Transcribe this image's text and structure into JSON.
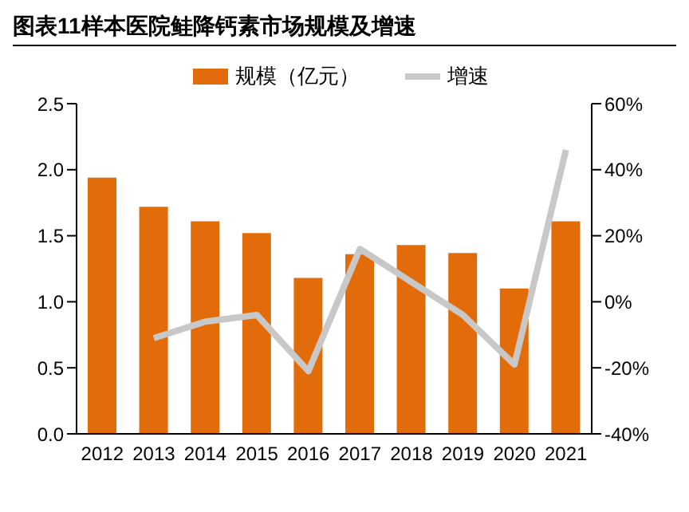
{
  "chart_data": {
    "type": "bar",
    "title": "图表11样本医院鲑降钙素市场规模及增速",
    "categories": [
      "2012",
      "2013",
      "2014",
      "2015",
      "2016",
      "2017",
      "2018",
      "2019",
      "2020",
      "2021"
    ],
    "series": [
      {
        "name": "规模（亿元）",
        "color": "#e36c0a",
        "values": [
          1.94,
          1.72,
          1.61,
          1.52,
          1.18,
          1.36,
          1.43,
          1.37,
          1.1,
          1.61
        ]
      },
      {
        "name": "增速",
        "type": "line",
        "axis": "y2",
        "color": "#c8c8c8",
        "values": [
          null,
          -11,
          -6,
          -4,
          -21,
          16,
          6,
          -4,
          -19,
          46
        ]
      }
    ],
    "ylim": [
      0,
      2.5
    ],
    "yticks": [
      {
        "value": 0,
        "label": "0.0"
      },
      {
        "value": 0.5,
        "label": "0.5"
      },
      {
        "value": 1,
        "label": "1.0"
      },
      {
        "value": 1.5,
        "label": "1.5"
      },
      {
        "value": 2,
        "label": "2.0"
      },
      {
        "value": 2.5,
        "label": "2.5"
      }
    ],
    "y2lim": [
      -40,
      60
    ],
    "y2ticks": [
      {
        "value": -40,
        "label": "-40%"
      },
      {
        "value": -20,
        "label": "-20%"
      },
      {
        "value": 0,
        "label": "0%"
      },
      {
        "value": 20,
        "label": "20%"
      },
      {
        "value": 40,
        "label": "40%"
      },
      {
        "value": 60,
        "label": "60%"
      }
    ],
    "legend": "top",
    "grid": false,
    "marker": "none"
  }
}
